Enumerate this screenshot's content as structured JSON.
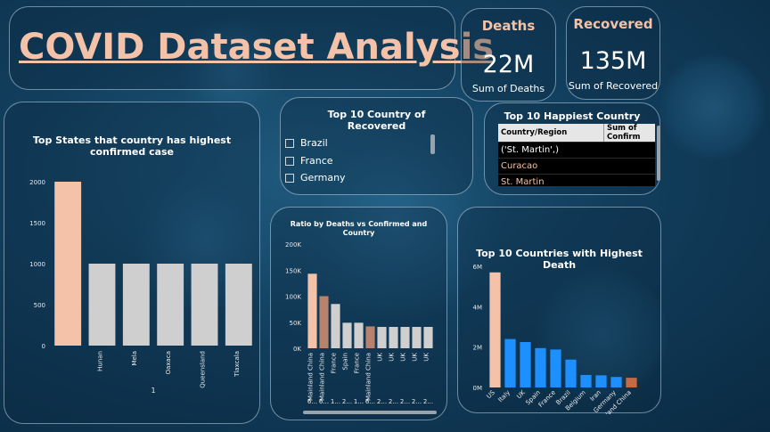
{
  "title": "COVID Dataset Analysis",
  "deaths": {
    "heading": "Deaths",
    "value": "22M",
    "label": "Sum of Deaths"
  },
  "recovered": {
    "heading": "Recovered",
    "value": "135M",
    "label": "Sum of Recovered"
  },
  "recovered_slicer": {
    "title_line1": "Top 10 Country of",
    "title_line2": "Recovered",
    "items": [
      "Brazil",
      "France",
      "Germany"
    ]
  },
  "happiest": {
    "title": "Top 10 Happiest Country",
    "col1": "Country/Region",
    "col2": "Sum of Confirm",
    "rows": [
      "('St. Martin',)",
      "Curacao",
      "St. Martin"
    ]
  },
  "chart_data": [
    {
      "type": "bar",
      "title": "Top States that country has highest confirmed case",
      "title_line1": "Top States that country has highest",
      "title_line2": "confirmed case",
      "categories": [
        "",
        "Hunan",
        "Mela",
        "Oaxaca",
        "Queensland",
        "Tlaxcala"
      ],
      "values": [
        2000,
        1000,
        1000,
        1000,
        1000,
        1000
      ],
      "xlabel": "1",
      "ylim": [
        0,
        2000
      ],
      "yticks": [
        "0",
        "500",
        "1000",
        "1500",
        "2000"
      ],
      "colors": [
        "#f4c2a8",
        "#cfcfcf"
      ]
    },
    {
      "type": "bar",
      "title": "Ratio by Deaths vs Confirmed and Country",
      "title_line1": "Ratio by Deaths vs Confirmed and",
      "title_line2": "Country",
      "categories": [
        "Mainland China",
        "Mainland China",
        "France",
        "Spain",
        "France",
        "Mainland China",
        "UK",
        "UK",
        "UK",
        "UK",
        "UK"
      ],
      "sub_labels": [
        "6...",
        "6...",
        "1...",
        "2...",
        "1...",
        "6...",
        "2...",
        "2...",
        "2...",
        "2...",
        "2..."
      ],
      "values": [
        143000,
        100000,
        85000,
        49000,
        49000,
        42000,
        41000,
        41000,
        41000,
        41000,
        41000
      ],
      "ylim": [
        0,
        200000
      ],
      "yticks": [
        "0K",
        "50K",
        "100K",
        "150K",
        "200K"
      ],
      "colors": [
        "#f4c2a8",
        "#b8826b",
        "#cfcfcf",
        "#cfcfcf",
        "#cfcfcf",
        "#b8826b",
        "#cfcfcf",
        "#cfcfcf",
        "#cfcfcf",
        "#cfcfcf",
        "#cfcfcf"
      ]
    },
    {
      "type": "bar",
      "title": "Top 10 Countries with Highest Death",
      "categories": [
        "US",
        "Italy",
        "UK",
        "Spain",
        "France",
        "Brazil",
        "Belgium",
        "Iran",
        "Germany",
        "Mainland China"
      ],
      "values": [
        5700000,
        2400000,
        2250000,
        1950000,
        1880000,
        1380000,
        620000,
        600000,
        520000,
        480000
      ],
      "ylim": [
        0,
        6000000
      ],
      "yticks": [
        "0M",
        "2M",
        "4M",
        "6M"
      ],
      "colors": [
        "#f4c2a8",
        "#1e8fff",
        "#1e8fff",
        "#1e8fff",
        "#1e8fff",
        "#1e8fff",
        "#1e8fff",
        "#1e8fff",
        "#1e8fff",
        "#c46a45"
      ]
    }
  ]
}
